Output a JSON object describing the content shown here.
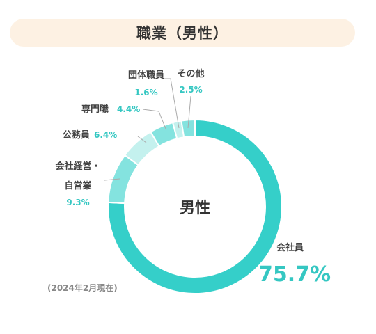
{
  "title": "職業（男性）",
  "center_label": "男性",
  "note": "(2024年2月現在)",
  "colors": {
    "slices": [
      "#35cfc9",
      "#84e3df",
      "#c4f1ee",
      "#84e3df",
      "#c4f1ee",
      "#84e3df"
    ],
    "accent": "#35c7c2",
    "title_bg": "#fdf1e3"
  },
  "labels": {
    "kaishain": {
      "name": "会社員",
      "pct": "75.7%"
    },
    "keiei": {
      "line1": "会社経営・",
      "line2": "自営業",
      "pct": "9.3%"
    },
    "koumuin": {
      "name": "公務員",
      "pct": "6.4%"
    },
    "senmon": {
      "name": "専門職",
      "pct": "4.4%"
    },
    "dantai": {
      "name": "団体職員",
      "pct": "1.6%"
    },
    "sonota": {
      "name": "その他",
      "pct": "2.5%"
    }
  },
  "chart_data": {
    "type": "pie",
    "categories": [
      "会社員",
      "会社経営・自営業",
      "公務員",
      "専門職",
      "団体職員",
      "その他"
    ],
    "values": [
      75.7,
      9.3,
      6.4,
      4.4,
      1.6,
      2.5
    ],
    "title": "職業（男性）"
  }
}
